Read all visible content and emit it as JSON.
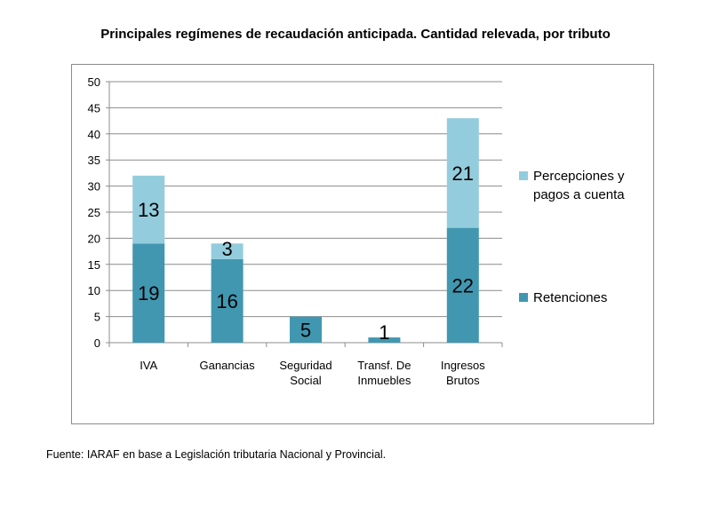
{
  "chart_data": {
    "type": "bar",
    "stacked": true,
    "title": "Principales regímenes de recaudación anticipada. Cantidad relevada, por tributo",
    "categories": [
      [
        "IVA"
      ],
      [
        "Ganancias"
      ],
      [
        "Seguridad",
        "Social"
      ],
      [
        "Transf. De",
        "Inmuebles"
      ],
      [
        "Ingresos",
        "Brutos"
      ]
    ],
    "series": [
      {
        "name": "Retenciones",
        "color": "#4197B0",
        "values": [
          19,
          16,
          5,
          1,
          22
        ]
      },
      {
        "name": "Percepciones y pagos a cuenta",
        "name_lines": [
          "Percepciones y",
          "pagos a cuenta"
        ],
        "color": "#93CDDD",
        "values": [
          13,
          3,
          0,
          0,
          21
        ]
      }
    ],
    "data_labels": [
      [
        "19",
        "16",
        "5",
        "1",
        "22"
      ],
      [
        "13",
        "3",
        "",
        "",
        "21"
      ]
    ],
    "yticks": [
      "0",
      "5",
      "10",
      "15",
      "20",
      "25",
      "30",
      "35",
      "40",
      "45",
      "50"
    ],
    "ylim": [
      0,
      50
    ],
    "grid": true,
    "legend_position": "right",
    "xlabel": "",
    "ylabel": ""
  },
  "source": "Fuente: IARAF en base a Legislación tributaria Nacional y Provincial."
}
